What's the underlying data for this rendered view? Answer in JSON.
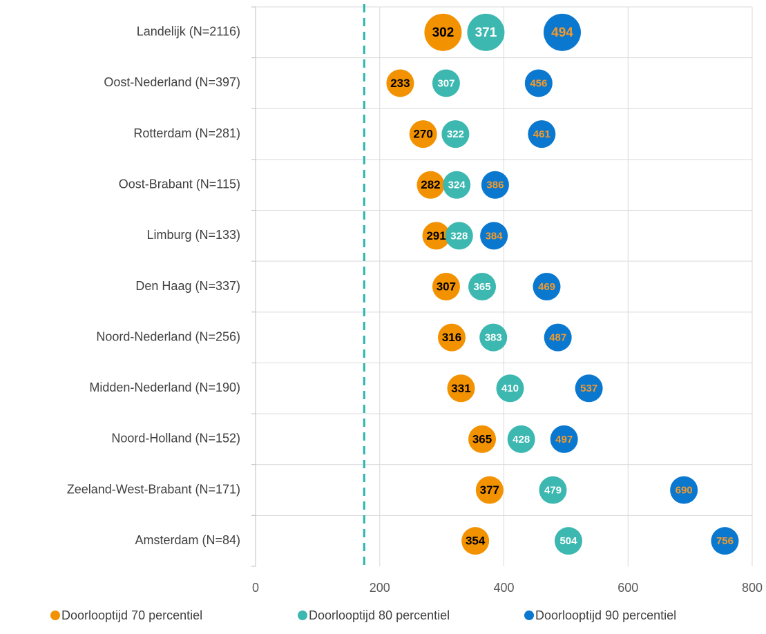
{
  "chart_data": {
    "type": "dot",
    "categories": [
      "Landelijk (N=2116)",
      "Oost-Nederland (N=397)",
      "Rotterdam (N=281)",
      "Oost-Brabant (N=115)",
      "Limburg (N=133)",
      "Den Haag (N=337)",
      "Noord-Nederland (N=256)",
      "Midden-Nederland (N=190)",
      "Noord-Holland (N=152)",
      "Zeeland-West-Brabant (N=171)",
      "Amsterdam (N=84)"
    ],
    "series": [
      {
        "name": "Doorlooptijd 70 percentiel",
        "color": "#f39200",
        "label_color": "#000000",
        "values": [
          302,
          233,
          270,
          282,
          291,
          307,
          316,
          331,
          365,
          377,
          354
        ]
      },
      {
        "name": "Doorlooptijd 80 percentiel",
        "color": "#3cb8b0",
        "label_color": "#ffffff",
        "values": [
          371,
          307,
          322,
          324,
          328,
          365,
          383,
          410,
          428,
          479,
          504
        ]
      },
      {
        "name": "Doorlooptijd 90 percentiel",
        "color": "#0b78d0",
        "label_color": "#f39a2a",
        "values": [
          494,
          456,
          461,
          386,
          384,
          469,
          487,
          537,
          497,
          690,
          756
        ]
      }
    ],
    "xlim": [
      0,
      800
    ],
    "xticks": [
      0,
      200,
      400,
      600,
      800
    ],
    "grid": true,
    "reference_line": {
      "value": 175,
      "color": "#2ab5ad"
    },
    "legend": "bottom"
  }
}
